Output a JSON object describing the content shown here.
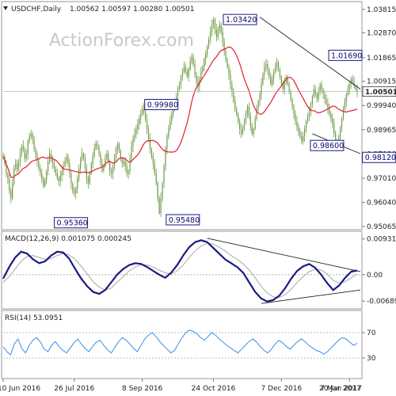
{
  "header": {
    "symbol": "USDCHF,Daily",
    "ohlc": "1.00562 1.00597 1.00280 1.00501",
    "watermark": "ActionForex.com"
  },
  "colors": {
    "candle": "#6f9a45",
    "ma": "#e0202a",
    "macd": "#1a1a80",
    "signal": "#a8a8a8",
    "rsi": "#3a8ee6",
    "trend": "#222222",
    "label_border": "#1a1a80"
  },
  "chart_data": [
    {
      "type": "candlestick",
      "panel": "price",
      "ylim": [
        0.95,
        1.04
      ],
      "y_ticks": [
        "1.03815",
        "1.02870",
        "1.01865",
        "1.00915",
        "0.99940",
        "0.98965",
        "0.97990",
        "0.97010",
        "0.96040",
        "0.95065"
      ],
      "y_tick_values": [
        1.03815,
        1.0287,
        1.01865,
        1.00915,
        0.9994,
        0.98965,
        0.9799,
        0.9701,
        0.9604,
        0.95065
      ],
      "x_labels": [
        "10 Jun 2016",
        "26 Jul 2016",
        "8 Sep 2016",
        "24 Oct 2016",
        "7 Dec 2016",
        "20 Jan 2017",
        "7 Mar 2017"
      ],
      "x_label_days": [
        0,
        46,
        90,
        136,
        180,
        224,
        270
      ],
      "current_price": "1.00501",
      "current_price_value": 1.00501,
      "closes": [
        0.979,
        0.976,
        0.972,
        0.97,
        0.965,
        0.962,
        0.968,
        0.974,
        0.976,
        0.9735,
        0.977,
        0.98,
        0.983,
        0.9815,
        0.978,
        0.98,
        0.985,
        0.987,
        0.988,
        0.986,
        0.982,
        0.98,
        0.977,
        0.974,
        0.972,
        0.97,
        0.967,
        0.969,
        0.973,
        0.977,
        0.98,
        0.978,
        0.976,
        0.974,
        0.972,
        0.97,
        0.969,
        0.971,
        0.973,
        0.975,
        0.977,
        0.979,
        0.976,
        0.972,
        0.968,
        0.965,
        0.964,
        0.966,
        0.97,
        0.974,
        0.978,
        0.98,
        0.978,
        0.974,
        0.97,
        0.968,
        0.972,
        0.976,
        0.979,
        0.982,
        0.984,
        0.983,
        0.98,
        0.976,
        0.973,
        0.975,
        0.978,
        0.98,
        0.977,
        0.973,
        0.972,
        0.975,
        0.978,
        0.982,
        0.984,
        0.981,
        0.978,
        0.976,
        0.977,
        0.975,
        0.972,
        0.973,
        0.978,
        0.983,
        0.986,
        0.988,
        0.99,
        0.992,
        0.994,
        0.996,
        0.998,
        0.997,
        0.994,
        0.99,
        0.986,
        0.982,
        0.979,
        0.976,
        0.972,
        0.968,
        0.962,
        0.956,
        0.962,
        0.968,
        0.975,
        0.982,
        0.987,
        0.99,
        0.993,
        0.996,
        0.998,
        1.0,
        1.003,
        1.006,
        1.008,
        1.011,
        1.013,
        1.015,
        1.013,
        1.011,
        1.014,
        1.017,
        1.019,
        1.016,
        1.012,
        1.009,
        1.007,
        1.01,
        1.013,
        1.015,
        1.018,
        1.02,
        1.023,
        1.026,
        1.029,
        1.032,
        1.034,
        1.03,
        1.027,
        1.03,
        1.032,
        1.029,
        1.025,
        1.021,
        1.018,
        1.015,
        1.012,
        1.008,
        1.005,
        1.001,
        0.998,
        0.996,
        0.993,
        0.99,
        0.988,
        0.99,
        0.993,
        0.996,
        0.999,
        0.995,
        0.991,
        0.988,
        0.99,
        0.994,
        0.998,
        1.001,
        1.004,
        1.008,
        1.012,
        1.015,
        1.016,
        1.014,
        1.011,
        1.008,
        1.01,
        1.013,
        1.015,
        1.0169,
        1.014,
        1.011,
        1.008,
        1.006,
        1.009,
        1.011,
        1.008,
        1.005,
        1.002,
        0.999,
        0.996,
        0.993,
        0.991,
        0.989,
        0.987,
        0.985,
        0.987,
        0.99,
        0.993,
        0.995,
        0.997,
        1.0,
        1.003,
        1.006,
        1.004,
        1.002,
        1.005,
        1.008,
        1.006,
        1.004,
        1.002,
        1.0,
        0.998,
        0.996,
        0.994,
        0.992,
        0.988,
        0.985,
        0.983,
        0.986,
        0.99,
        0.994,
        0.998,
        1.001,
        1.004,
        1.006,
        1.008,
        1.01,
        1.009,
        1.007,
        1.006,
        1.005
      ],
      "ma_label": "MA",
      "annotations": [
        {
          "text": "1.03420",
          "value": 1.0342,
          "day": 166
        },
        {
          "text": "1.01690",
          "value": 1.0169,
          "day": 228
        },
        {
          "text": "0.99980",
          "value": 0.9998,
          "day": 110
        },
        {
          "text": "0.98600",
          "value": 0.986,
          "day": 210
        },
        {
          "text": "0.98120",
          "value": 0.9812,
          "day": 255
        },
        {
          "text": "0.95360",
          "value": 0.9536,
          "day": 30
        },
        {
          "text": "0.95480",
          "value": 0.9548,
          "day": 128
        }
      ]
    },
    {
      "type": "line",
      "panel": "macd",
      "title": "MACD(12,26,9) 0.001075 0.000245",
      "y_ticks": [
        "0.009318",
        "0.00",
        "-0.006894"
      ],
      "y_tick_values": [
        0.009318,
        0.0,
        -0.006894
      ],
      "ylim": [
        -0.0085,
        0.0105
      ],
      "series": [
        {
          "name": "MACD",
          "values": [
            -0.001,
            0.002,
            0.0045,
            0.006,
            0.0055,
            0.004,
            0.003,
            0.0035,
            0.005,
            0.006,
            0.0058,
            0.0042,
            0.0015,
            -0.001,
            -0.003,
            -0.0045,
            -0.005,
            -0.004,
            -0.002,
            0.0,
            0.0015,
            0.0025,
            0.003,
            0.0028,
            0.002,
            0.001,
            0.0,
            -0.0008,
            0.0005,
            0.0025,
            0.005,
            0.0072,
            0.0085,
            0.009,
            0.0085,
            0.007,
            0.0055,
            0.004,
            0.003,
            0.002,
            0.0005,
            -0.002,
            -0.0045,
            -0.0062,
            -0.007,
            -0.0066,
            -0.0055,
            -0.0035,
            -0.001,
            0.001,
            0.0022,
            0.0028,
            0.0018,
            0.0,
            -0.0022,
            -0.004,
            -0.0028,
            -0.0008,
            0.0008,
            0.0011
          ]
        },
        {
          "name": "Signal",
          "values": [
            -0.002,
            -0.0005,
            0.0015,
            0.0035,
            0.0048,
            0.005,
            0.0045,
            0.004,
            0.0042,
            0.005,
            0.0055,
            0.0052,
            0.004,
            0.0022,
            0.0002,
            -0.0018,
            -0.0032,
            -0.004,
            -0.0035,
            -0.002,
            -0.0005,
            0.001,
            0.002,
            0.0026,
            0.0025,
            0.002,
            0.0012,
            0.0005,
            0.0002,
            0.001,
            0.0025,
            0.0045,
            0.0062,
            0.0075,
            0.0082,
            0.008,
            0.0072,
            0.0062,
            0.005,
            0.004,
            0.0028,
            0.0012,
            -0.0008,
            -0.003,
            -0.0048,
            -0.0058,
            -0.006,
            -0.0052,
            -0.0038,
            -0.002,
            -0.0005,
            0.0008,
            0.0014,
            0.0012,
            0.0002,
            -0.0015,
            -0.0022,
            -0.0018,
            -0.0008,
            0.0002
          ]
        }
      ]
    },
    {
      "type": "line",
      "panel": "rsi",
      "title": "RSI(14) 53.0951",
      "y_ticks": [
        "100",
        "70",
        "30",
        "0"
      ],
      "y_tick_values": [
        100,
        70,
        30,
        0
      ],
      "ylim": [
        0,
        100
      ],
      "series": [
        {
          "name": "RSI",
          "values": [
            48,
            40,
            35,
            52,
            60,
            45,
            38,
            50,
            58,
            62,
            55,
            44,
            40,
            50,
            56,
            48,
            42,
            38,
            46,
            54,
            60,
            52,
            45,
            40,
            48,
            55,
            58,
            50,
            43,
            38,
            47,
            56,
            62,
            58,
            52,
            45,
            40,
            50,
            60,
            66,
            70,
            64,
            56,
            50,
            44,
            38,
            42,
            52,
            62,
            70,
            74,
            72,
            68,
            62,
            58,
            64,
            70,
            66,
            60,
            55,
            50,
            46,
            42,
            38,
            44,
            50,
            56,
            60,
            55,
            48,
            42,
            38,
            44,
            52,
            58,
            54,
            48,
            44,
            50,
            56,
            60,
            56,
            50,
            46,
            42,
            40,
            36,
            40,
            46,
            52,
            58,
            62,
            60,
            55,
            50,
            53
          ]
        }
      ]
    }
  ]
}
